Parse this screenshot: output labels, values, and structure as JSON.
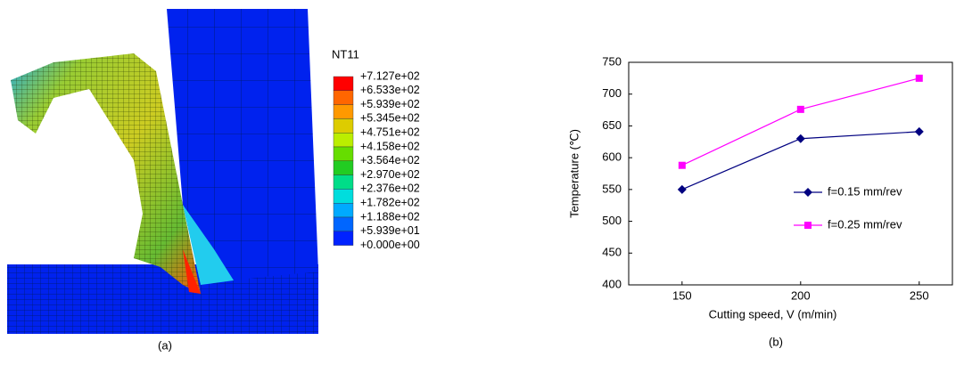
{
  "panel_a": {
    "legend_title": "NT11",
    "legend_labels": [
      "+7.127e+02",
      "+6.533e+02",
      "+5.939e+02",
      "+5.345e+02",
      "+4.751e+02",
      "+4.158e+02",
      "+3.564e+02",
      "+2.970e+02",
      "+2.376e+02",
      "+1.782e+02",
      "+1.188e+02",
      "+5.939e+01",
      "+0.000e+00"
    ],
    "caption": "(a)"
  },
  "chart_data": {
    "type": "line",
    "caption": "(b)",
    "x_label": "Cutting speed, V (m/min)",
    "y_label": "Temperature (℃)",
    "x": [
      150,
      200,
      250
    ],
    "series": [
      {
        "name": "f=0.15 mm/rev",
        "color": "#000080",
        "marker": "diamond",
        "values": [
          550,
          630,
          641
        ]
      },
      {
        "name": "f=0.25 mm/rev",
        "color": "#ff00ff",
        "marker": "square",
        "values": [
          588,
          676,
          725
        ]
      }
    ],
    "xlim": [
      127.5,
      264
    ],
    "xticks": [
      150,
      200,
      250
    ],
    "ylim": [
      400,
      750
    ],
    "yticks": [
      400,
      450,
      500,
      550,
      600,
      650,
      700,
      750
    ]
  }
}
